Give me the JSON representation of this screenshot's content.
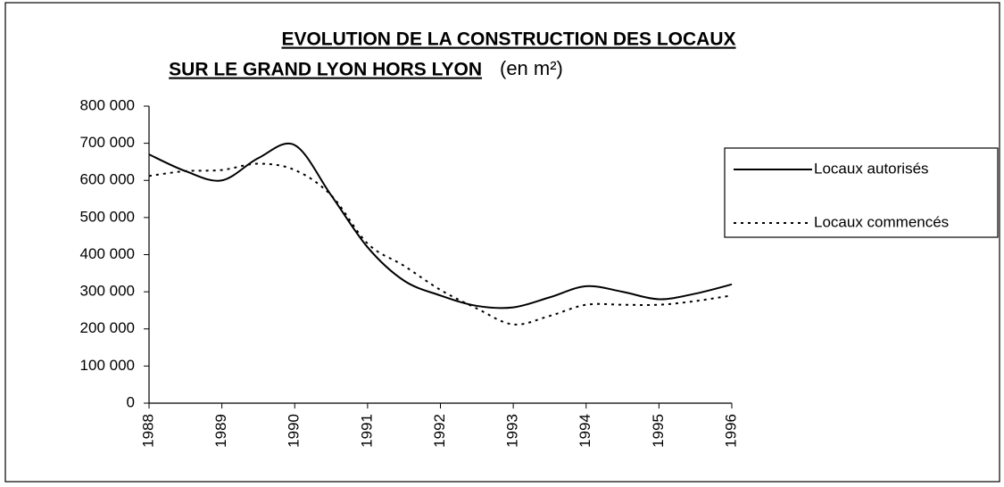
{
  "chart_data": {
    "type": "line",
    "title": "EVOLUTION DE LA CONSTRUCTION DES LOCAUX",
    "title_line2": "SUR LE GRAND LYON HORS LYON",
    "subtitle": "(en m²)",
    "x": [
      1988,
      1988.5,
      1989,
      1989.5,
      1990,
      1990.5,
      1991,
      1991.5,
      1992,
      1992.5,
      1993,
      1993.5,
      1994,
      1994.5,
      1995,
      1995.5,
      1996
    ],
    "series": [
      {
        "name": "Locaux autorisés",
        "color": "#000000",
        "dash": "solid",
        "values": [
          670000,
          625000,
          600000,
          660000,
          695000,
          560000,
          420000,
          330000,
          290000,
          262000,
          258000,
          285000,
          315000,
          300000,
          280000,
          295000,
          320000
        ]
      },
      {
        "name": "Locaux commencés",
        "color": "#000000",
        "dash": "dotted",
        "values": [
          612000,
          625000,
          628000,
          645000,
          628000,
          560000,
          430000,
          370000,
          305000,
          255000,
          212000,
          235000,
          265000,
          265000,
          265000,
          275000,
          290000
        ]
      }
    ],
    "xlim": [
      1988,
      1996
    ],
    "xticks": [
      1988,
      1989,
      1990,
      1991,
      1992,
      1993,
      1994,
      1995,
      1996
    ],
    "ylim": [
      0,
      800000
    ],
    "yticks": [
      0,
      {
        "value": 100000,
        "label": "100 000"
      },
      {
        "value": 200000,
        "label": "200 000"
      },
      {
        "value": 300000,
        "label": "300 000"
      },
      {
        "value": 400000,
        "label": "400 000"
      },
      {
        "value": 500000,
        "label": "500 000"
      },
      {
        "value": 600000,
        "label": "600 000"
      },
      {
        "value": 700000,
        "label": "700 000"
      },
      {
        "value": 800000,
        "label": "800 000"
      }
    ],
    "grid": false,
    "legend": "right"
  }
}
